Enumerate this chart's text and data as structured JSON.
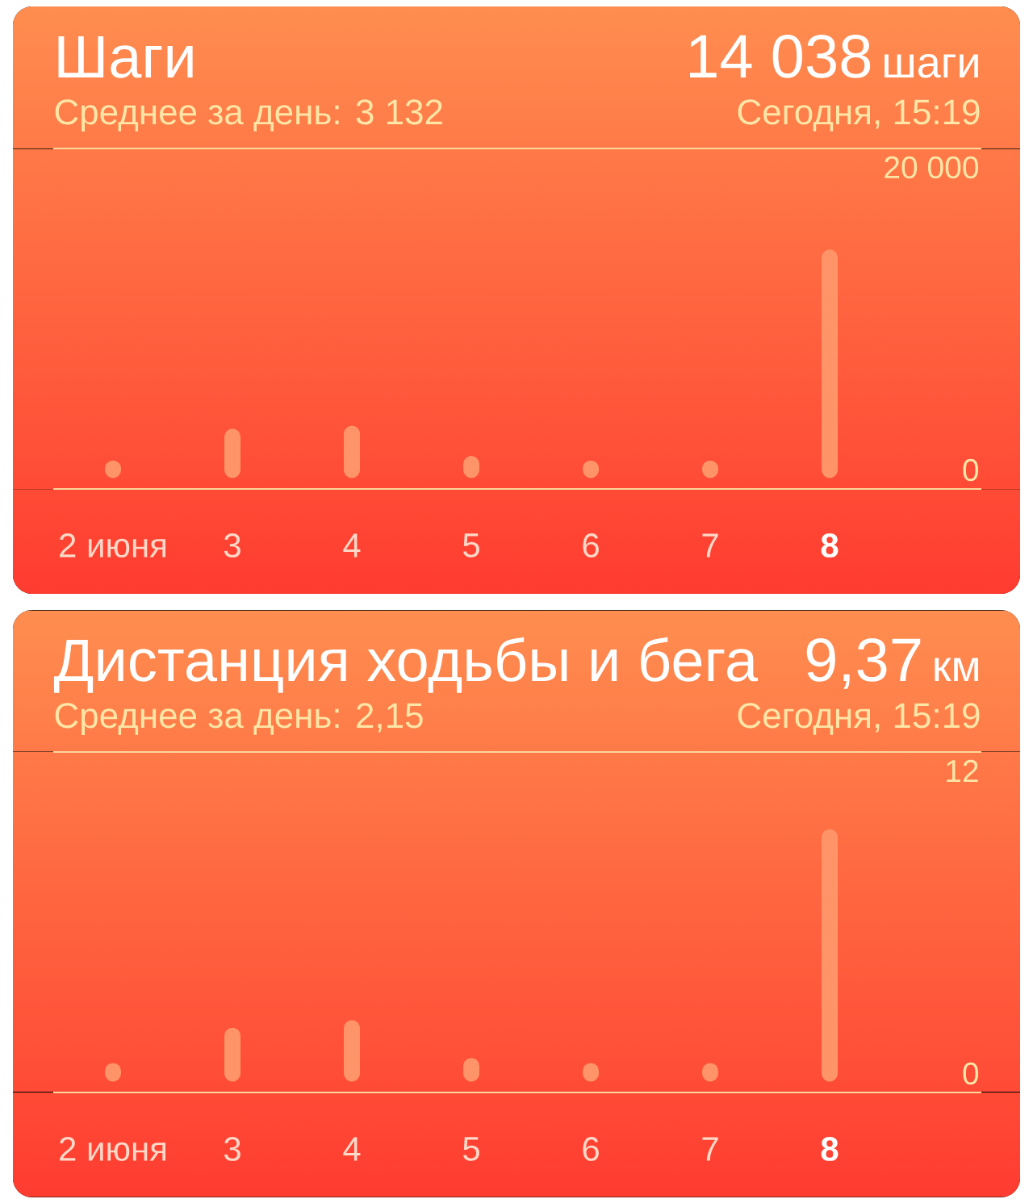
{
  "chart_data": [
    {
      "type": "bar",
      "title": "Шаги",
      "subtitle": "Среднее за день: 3 132",
      "annotations": [
        "14 038",
        "шаги",
        "Сегодня, 15:19"
      ],
      "categories": [
        "2 июня",
        "3",
        "4",
        "5",
        "6",
        "7",
        "8"
      ],
      "values": [
        100,
        2200,
        2400,
        400,
        100,
        100,
        14038
      ],
      "color": "#ff9468",
      "ylim": [
        -1250,
        21250
      ],
      "yticks": [
        0,
        {
          "value": 20000,
          "label": "20 000"
        }
      ]
    },
    {
      "type": "bar",
      "title": "Дистанция ходьбы и бега",
      "subtitle": "Среднее за день: 2,15",
      "annotations": [
        "9,37",
        "км",
        "Сегодня, 15:19"
      ],
      "categories": [
        "2 июня",
        "3",
        "4",
        "5",
        "6",
        "7",
        "8"
      ],
      "values": [
        0.1,
        1.5,
        1.8,
        0.3,
        0.1,
        0.1,
        9.37
      ],
      "color": "#ff9468",
      "ylim": [
        -0.75,
        12.75
      ],
      "yticks": [
        0,
        12
      ]
    }
  ]
}
